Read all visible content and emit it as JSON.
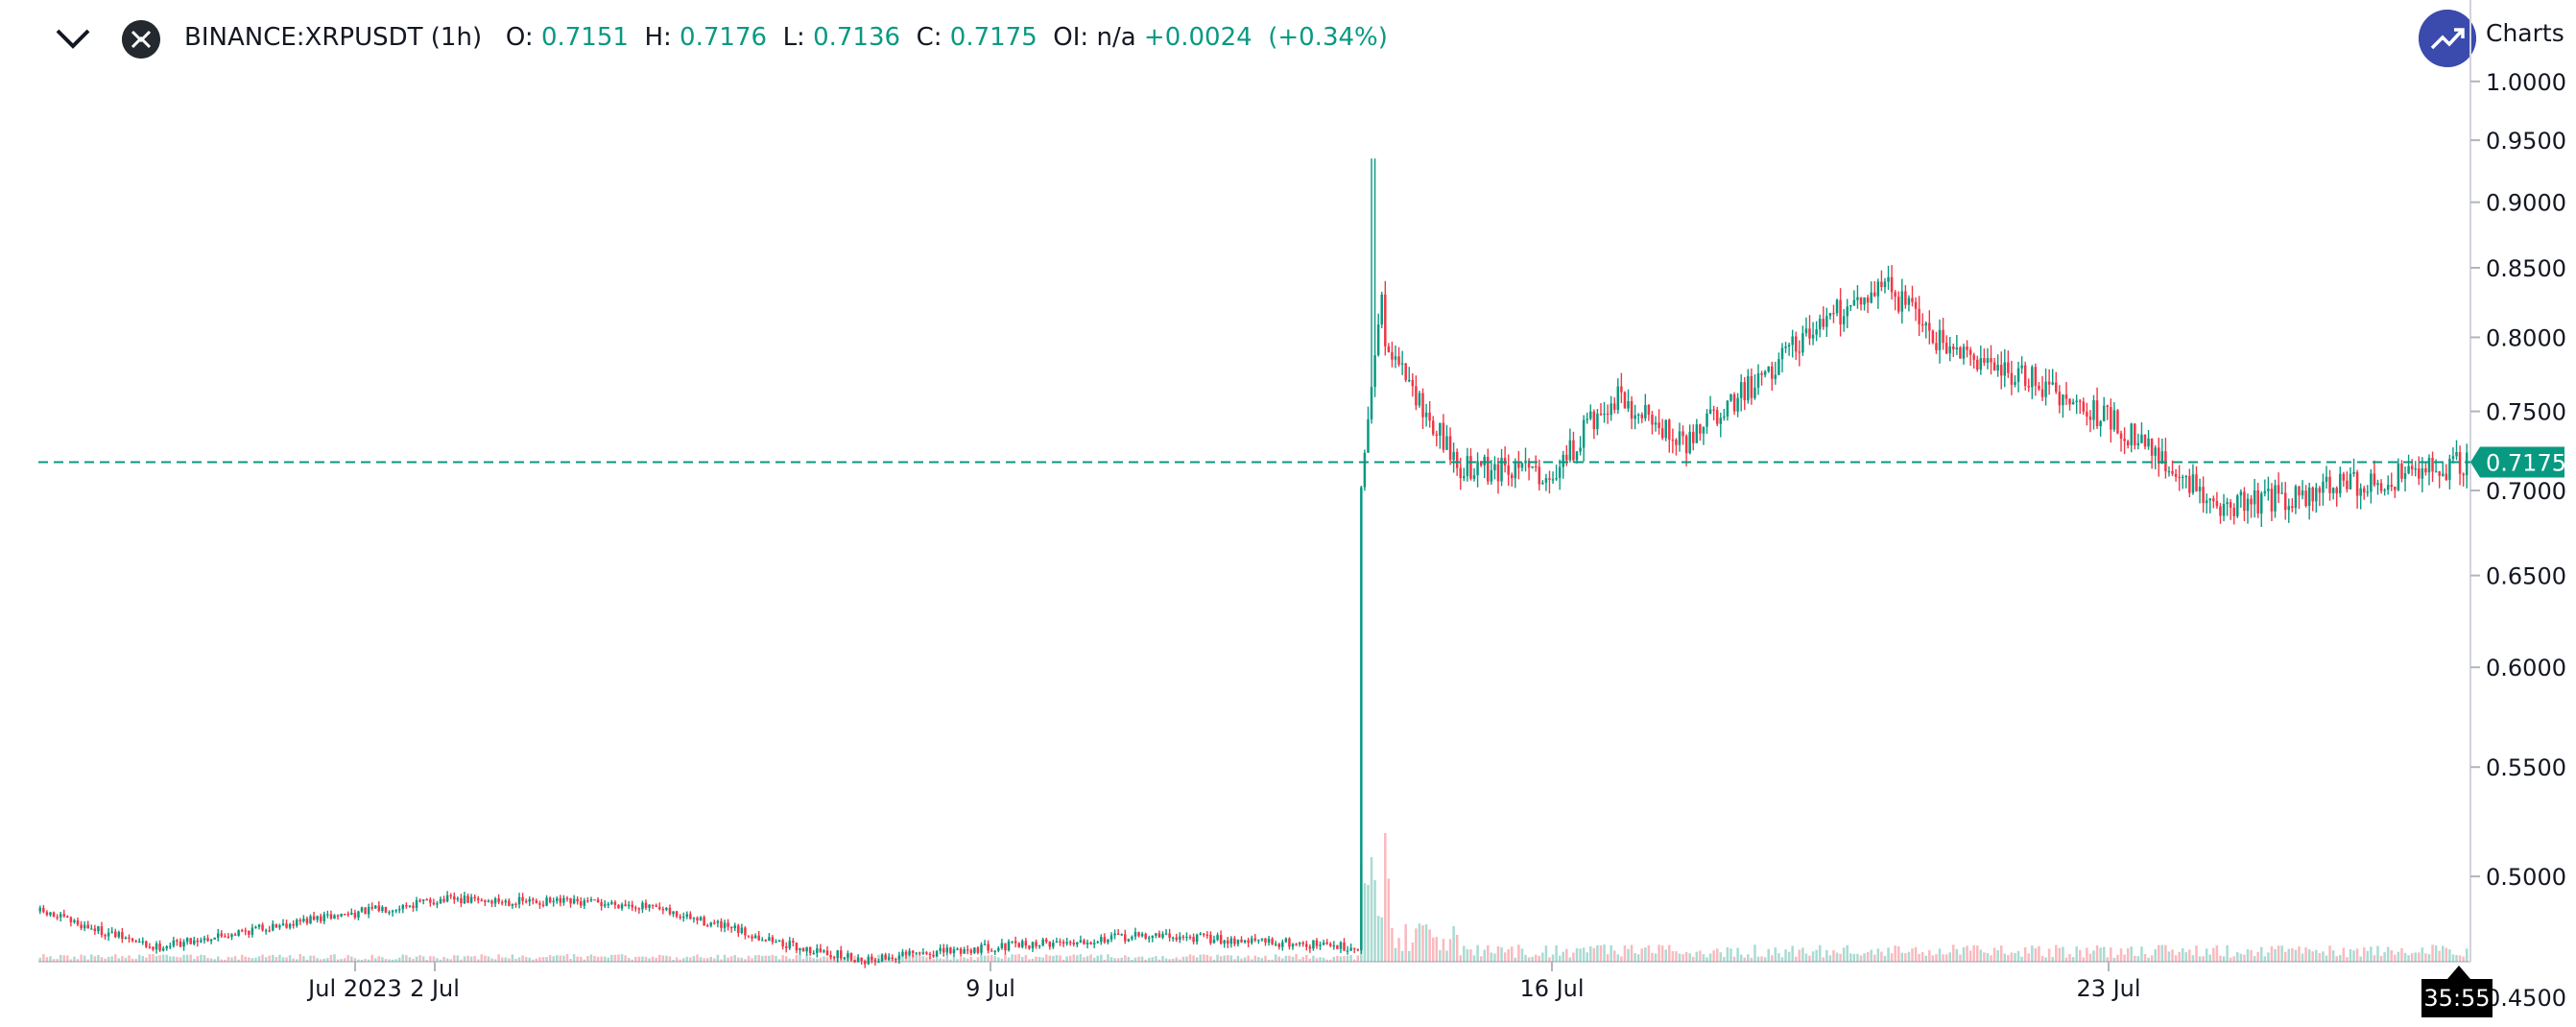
{
  "header": {
    "symbol": "BINANCE:XRPUSDT (1h)",
    "o_label": "O:",
    "o_value": "0.7151",
    "h_label": "H:",
    "h_value": "0.7176",
    "l_label": "L:",
    "l_value": "0.7136",
    "c_label": "C:",
    "c_value": "0.7175",
    "oi_label": "OI:",
    "oi_value": "n/a",
    "change": "+0.0024",
    "change_pct": "(+0.34%)",
    "top_right_text": "Charts"
  },
  "colors": {
    "up": "#089981",
    "down": "#f23645",
    "text": "#131722",
    "badge": "#3a4aad"
  },
  "icons": {
    "menu": "chevron-down-icon",
    "symbol": "xrp-logo-icon",
    "badge": "trending-up-icon"
  },
  "timer": "35:55",
  "chart_data": {
    "type": "candlestick",
    "title": "",
    "xlabel": "",
    "ylabel": "",
    "y_axis_scale": "log",
    "ylim": [
      0.41,
      1.0
    ],
    "y_ticks": [
      "0.4500",
      "0.5000",
      "0.5500",
      "0.6000",
      "0.6500",
      "0.7000",
      "0.7500",
      "0.8000",
      "0.8500",
      "0.9000",
      "0.9500",
      "1.0000"
    ],
    "x_ticks": [
      "Jul 2023",
      "2 Jul",
      "9 Jul",
      "16 Jul",
      "23 Jul"
    ],
    "last_price": 0.7175,
    "last_price_label": "0.7175",
    "series": [
      {
        "name": "price",
        "approx_close_path": [
          {
            "x": "Jun 28",
            "close": 0.485
          },
          {
            "x": "Jun 30",
            "close": 0.47
          },
          {
            "x": "Jul 1",
            "close": 0.48
          },
          {
            "x": "Jul 2",
            "close": 0.49
          },
          {
            "x": "Jul 4",
            "close": 0.488
          },
          {
            "x": "Jul 5",
            "close": 0.48
          },
          {
            "x": "Jul 6",
            "close": 0.47
          },
          {
            "x": "Jul 7",
            "close": 0.465
          },
          {
            "x": "Jul 9",
            "close": 0.47
          },
          {
            "x": "Jul 11",
            "close": 0.475
          },
          {
            "x": "Jul 13",
            "close": 0.47
          },
          {
            "x": "Jul 13 spike",
            "close": 0.81
          },
          {
            "x": "Jul 14",
            "close": 0.78
          },
          {
            "x": "Jul 15",
            "close": 0.715
          },
          {
            "x": "Jul 16",
            "close": 0.71
          },
          {
            "x": "Jul 17",
            "close": 0.76
          },
          {
            "x": "Jul 18",
            "close": 0.73
          },
          {
            "x": "Jul 20",
            "close": 0.8
          },
          {
            "x": "Jul 21",
            "close": 0.84
          },
          {
            "x": "Jul 22",
            "close": 0.79
          },
          {
            "x": "Jul 23",
            "close": 0.77
          },
          {
            "x": "Jul 24",
            "close": 0.745
          },
          {
            "x": "Jul 25",
            "close": 0.69
          },
          {
            "x": "Jul 26",
            "close": 0.7
          },
          {
            "x": "Jul 27",
            "close": 0.7175
          }
        ],
        "spike_high": 0.935,
        "spike_low_before": 0.468
      }
    ]
  }
}
